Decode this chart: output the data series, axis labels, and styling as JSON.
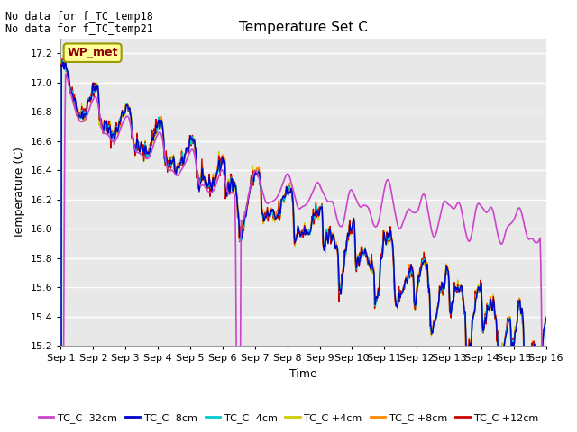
{
  "title": "Temperature Set C",
  "xlabel": "Time",
  "ylabel": "Temperature (C)",
  "ylim": [
    15.2,
    17.3
  ],
  "xlim": [
    0,
    15
  ],
  "xtick_labels": [
    "Sep 1",
    "Sep 2",
    "Sep 3",
    "Sep 4",
    "Sep 5",
    "Sep 6",
    "Sep 7",
    "Sep 8",
    "Sep 9",
    "Sep 10",
    "Sep 11",
    "Sep 12",
    "Sep 13",
    "Sep 14",
    "Sep 15",
    "Sep 16"
  ],
  "ytick_values": [
    15.2,
    15.4,
    15.6,
    15.8,
    16.0,
    16.2,
    16.4,
    16.6,
    16.8,
    17.0,
    17.2
  ],
  "annotations": [
    "No data for f_TC_temp18",
    "No data for f_TC_temp21"
  ],
  "wp_met_label": "WP_met",
  "legend": [
    {
      "label": "TC_C -32cm",
      "color": "#cc44cc"
    },
    {
      "label": "TC_C -8cm",
      "color": "#0000cc"
    },
    {
      "label": "TC_C -4cm",
      "color": "#00cccc"
    },
    {
      "label": "TC_C +4cm",
      "color": "#cccc00"
    },
    {
      "label": "TC_C +8cm",
      "color": "#ff8800"
    },
    {
      "label": "TC_C +12cm",
      "color": "#cc0000"
    }
  ],
  "background_color": "#e8e8e8",
  "grid_color": "#ffffff",
  "fig_bg": "#ffffff"
}
